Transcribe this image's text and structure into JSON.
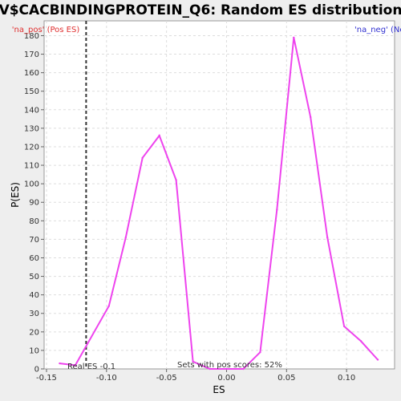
{
  "chart_data": {
    "type": "line",
    "title": "V$CACBINDINGPROTEIN_Q6: Random ES distribution",
    "xlabel": "ES",
    "ylabel": "P(ES)",
    "xlim": [
      -0.152,
      0.14
    ],
    "ylim": [
      0,
      188
    ],
    "x_ticks": [
      -0.15,
      -0.1,
      -0.05,
      0.0,
      0.05,
      0.1
    ],
    "x_tick_labels": [
      "-0.15",
      "-0.10",
      "-0.05",
      "0.00",
      "0.05",
      "0.10"
    ],
    "y_ticks": [
      0,
      10,
      20,
      30,
      40,
      50,
      60,
      70,
      80,
      90,
      100,
      110,
      120,
      130,
      140,
      150,
      160,
      170,
      180
    ],
    "grid": true,
    "legend": {
      "left": "'na_pos' (Pos ES)",
      "right": "'na_neg' (Neg ES)"
    },
    "series": [
      {
        "color": "#ee44ee",
        "x": [
          -0.139,
          -0.126,
          -0.098,
          -0.084,
          -0.07,
          -0.056,
          -0.042,
          -0.028,
          -0.014,
          0.0,
          0.014,
          0.028,
          0.042,
          0.056,
          0.07,
          0.084,
          0.098,
          0.112,
          0.126
        ],
        "y": [
          3,
          2,
          34,
          71,
          114,
          126,
          102,
          4,
          0,
          0,
          0,
          9,
          86,
          179,
          136,
          71,
          23,
          15,
          5
        ]
      }
    ],
    "real_es": {
      "x": -0.117,
      "label": "Real ES -0.1"
    },
    "annotation": "Sets with pos scores: 52%"
  }
}
